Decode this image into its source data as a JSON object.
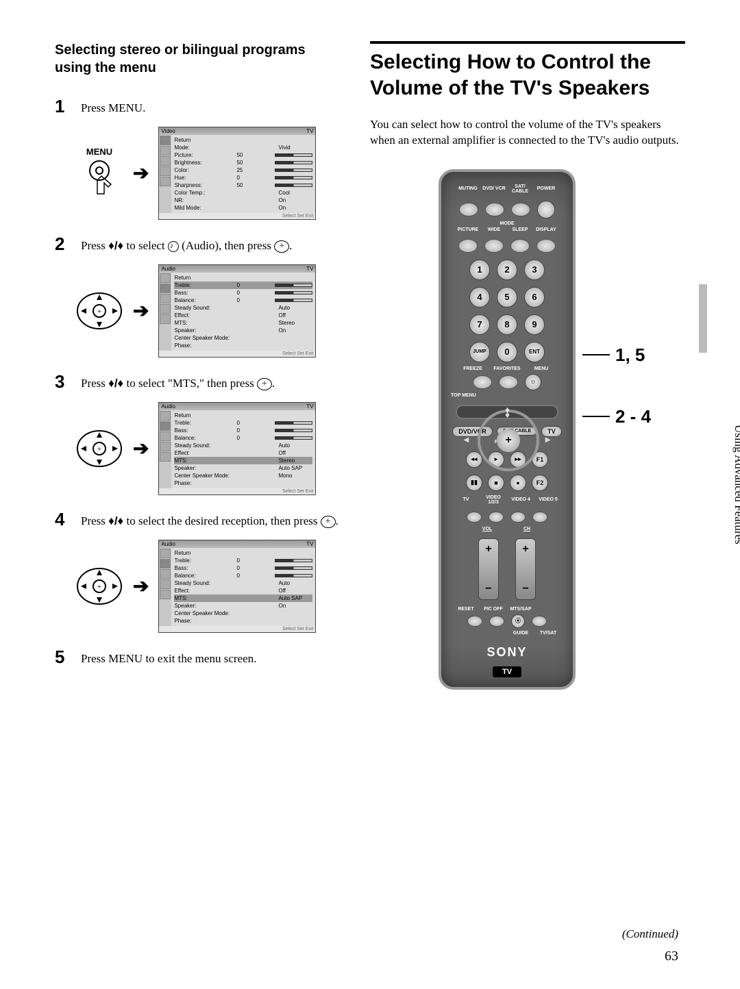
{
  "left": {
    "heading": "Selecting stereo or bilingual programs using the menu",
    "steps": [
      {
        "num": "1",
        "text": "Press MENU."
      },
      {
        "num": "2",
        "text_pre": "Press ",
        "text_mid": " to select ",
        "text_audio": " (Audio), then press ",
        "text_end": "."
      },
      {
        "num": "3",
        "text_pre": "Press ",
        "text_mid": " to select \"MTS,\" then press ",
        "text_end": "."
      },
      {
        "num": "4",
        "text_pre": "Press ",
        "text_mid": " to select the desired reception, then press ",
        "text_end": "."
      },
      {
        "num": "5",
        "text": "Press MENU to exit the menu screen."
      }
    ],
    "menu_label": "MENU",
    "osd_tv": "TV",
    "osd_foot": "Select    Set    Exit",
    "video_osd": {
      "title": "Video",
      "rows": [
        {
          "k": "Return",
          "v": ""
        },
        {
          "k": "Mode:",
          "v": "Vivid"
        },
        {
          "k": "Picture:",
          "v": "50",
          "bar": true
        },
        {
          "k": "Brightness:",
          "v": "50",
          "bar": true
        },
        {
          "k": "Color:",
          "v": "25",
          "bar": true
        },
        {
          "k": "Hue:",
          "v": "0",
          "bar": true
        },
        {
          "k": "Sharpness:",
          "v": "50",
          "bar": true
        },
        {
          "k": "Color Temp.:",
          "v": "Cool"
        },
        {
          "k": "NR:",
          "v": "On"
        },
        {
          "k": "Mild Mode:",
          "v": "On"
        }
      ]
    },
    "audio_osd_a": {
      "title": "Audio",
      "highlight_index": 1,
      "rows": [
        {
          "k": "Return",
          "v": ""
        },
        {
          "k": "Treble:",
          "v": "0",
          "bar": true
        },
        {
          "k": "Bass:",
          "v": "0",
          "bar": true
        },
        {
          "k": "Balance:",
          "v": "0",
          "bar": true
        },
        {
          "k": "Steady Sound:",
          "v": "Auto"
        },
        {
          "k": "Effect:",
          "v": "Off"
        },
        {
          "k": "MTS:",
          "v": "Stereo"
        },
        {
          "k": "Speaker:",
          "v": "On"
        },
        {
          "k": "Center Speaker Mode:",
          "v": ""
        },
        {
          "k": "Phase:",
          "v": ""
        }
      ]
    },
    "audio_osd_b": {
      "title": "Audio",
      "highlight_index": 6,
      "rows": [
        {
          "k": "Return",
          "v": ""
        },
        {
          "k": "Treble:",
          "v": "0",
          "bar": true
        },
        {
          "k": "Bass:",
          "v": "0",
          "bar": true
        },
        {
          "k": "Balance:",
          "v": "0",
          "bar": true
        },
        {
          "k": "Steady Sound:",
          "v": "Auto"
        },
        {
          "k": "Effect:",
          "v": "Off"
        },
        {
          "k": "MTS:",
          "v": "Stereo"
        },
        {
          "k": "Speaker:",
          "v": "Auto SAP"
        },
        {
          "k": "Center Speaker Mode:",
          "v": "Mono"
        },
        {
          "k": "Phase:",
          "v": ""
        }
      ]
    },
    "audio_osd_c": {
      "title": "Audio",
      "highlight_index": 6,
      "rows": [
        {
          "k": "Return",
          "v": ""
        },
        {
          "k": "Treble:",
          "v": "0",
          "bar": true
        },
        {
          "k": "Bass:",
          "v": "0",
          "bar": true
        },
        {
          "k": "Balance:",
          "v": "0",
          "bar": true
        },
        {
          "k": "Steady Sound:",
          "v": "Auto"
        },
        {
          "k": "Effect:",
          "v": "Off"
        },
        {
          "k": "MTS:",
          "v": "Auto SAP"
        },
        {
          "k": "Speaker:",
          "v": "On"
        },
        {
          "k": "Center Speaker Mode:",
          "v": ""
        },
        {
          "k": "Phase:",
          "v": ""
        }
      ]
    }
  },
  "right": {
    "heading": "Selecting How to Control the Volume of the TV's Speakers",
    "intro": "You can select how to control the volume of the TV's speakers when an external amplifier is connected to the TV's audio outputs.",
    "callout1": "1, 5",
    "callout2": "2 - 4",
    "remote": {
      "top_labels": [
        "MUTING",
        "DVD/ VCR",
        "SAT/ CABLE",
        "POWER"
      ],
      "mode_label": "MODE",
      "mode_row": [
        "PICTURE",
        "WIDE",
        "SLEEP",
        "DISPLAY"
      ],
      "numbers": [
        "1",
        "2",
        "3",
        "4",
        "5",
        "6",
        "7",
        "8",
        "9",
        "JUMP",
        "0",
        "ENT"
      ],
      "ffm_labels": [
        "FREEZE",
        "FAVORITES",
        "MENU"
      ],
      "topmenu": "TOP MENU",
      "func_pills": [
        "DVD/VCR",
        "SAT/ CABLE",
        "TV"
      ],
      "function_label": "FUNCTION",
      "transport": [
        "◂◂",
        "▸",
        "▸▸",
        "F1",
        "▮▮",
        "■",
        "●",
        "F2"
      ],
      "video_labels": [
        "TV",
        "VIDEO 1/2/3",
        "VIDEO 4",
        "VIDEO 5"
      ],
      "vol_label": "VOL",
      "ch_label": "CH",
      "bottom_labels": [
        "RESET",
        "PIC OFF",
        "MTS/SAP",
        ""
      ],
      "guide_labels": [
        "",
        "",
        "GUIDE",
        "TV/SAT"
      ],
      "brand": "SONY",
      "tv_tag": "TV"
    }
  },
  "side_tab": "Using Advanced Features",
  "continued": "(Continued)",
  "page_number": "63",
  "colors": {
    "text": "#000000",
    "bg": "#ffffff",
    "remote_body": "#666666",
    "remote_border": "#999999",
    "osd_bg": "#d8d8d8"
  }
}
